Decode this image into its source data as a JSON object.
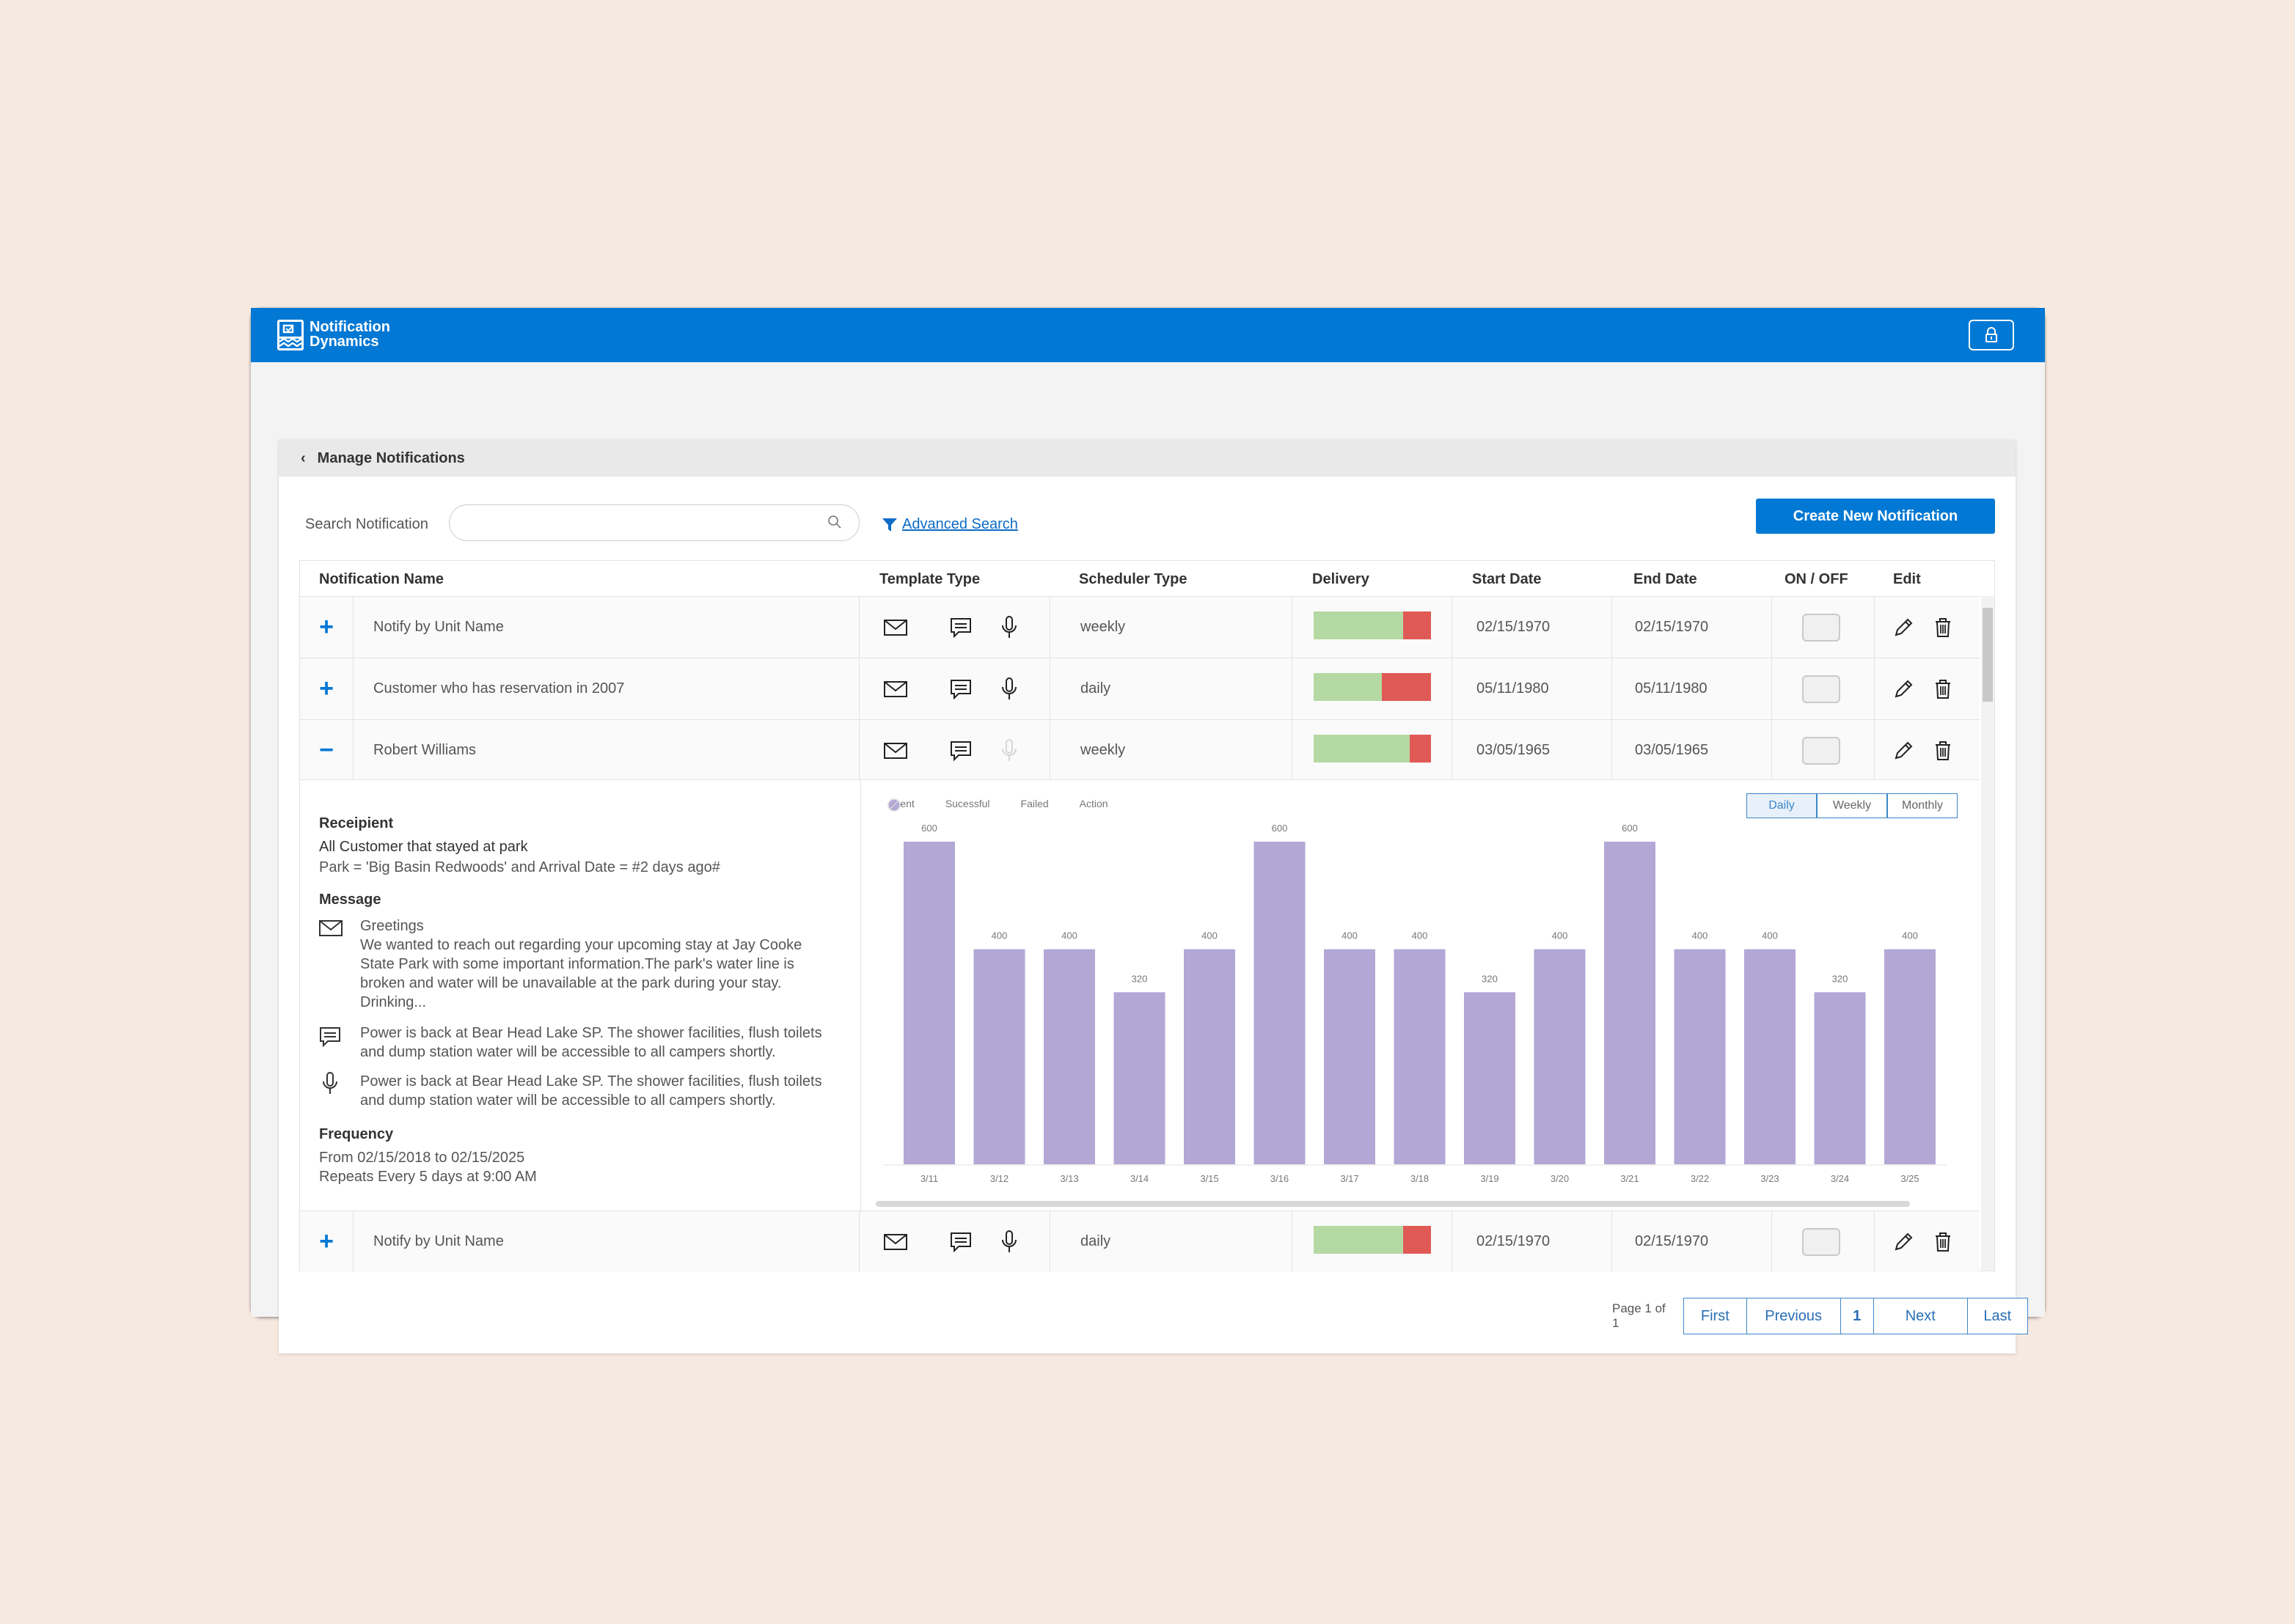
{
  "app": {
    "brand_line1": "Notification",
    "brand_line2": "Dynamics"
  },
  "breadcrumb": {
    "title": "Manage Notifications"
  },
  "toolbar": {
    "search_label": "Search Notification",
    "search_placeholder": "",
    "advanced_search": "Advanced Search",
    "create_button": "Create New Notification"
  },
  "table": {
    "headers": {
      "name": "Notification Name",
      "template": "Template Type",
      "scheduler": "Scheduler Type",
      "delivery": "Delivery",
      "start": "Start Date",
      "end": "End Date",
      "onoff": "ON / OFF",
      "edit": "Edit"
    },
    "rows": [
      {
        "expander": "+",
        "name": "Notify by Unit Name",
        "scheduler": "weekly",
        "delivery_success_fraction": 0.76,
        "start": "02/15/1970",
        "end": "02/15/1970",
        "voice_enabled": true
      },
      {
        "expander": "+",
        "name": "Customer who has reservation in 2007",
        "scheduler": "daily",
        "delivery_success_fraction": 0.58,
        "start": "05/11/1980",
        "end": "05/11/1980",
        "voice_enabled": true
      },
      {
        "expander": "−",
        "name": "Robert Williams",
        "scheduler": "weekly",
        "delivery_success_fraction": 0.82,
        "start": "03/05/1965",
        "end": "03/05/1965",
        "voice_enabled": false
      },
      {
        "expander": "+",
        "name": "Notify by Unit Name",
        "scheduler": "daily",
        "delivery_success_fraction": 0.76,
        "start": "02/15/1970",
        "end": "02/15/1970",
        "voice_enabled": true
      }
    ]
  },
  "detail": {
    "recipient_heading": "Receipient",
    "recipient_line1": "All Customer that stayed at park",
    "recipient_line2": "Park = 'Big Basin Redwoods' and Arrival Date = #2 days ago#",
    "message_heading": "Message",
    "email_greeting": "Greetings",
    "email_body": "We wanted to reach out regarding your upcoming stay at Jay Cooke State Park with some important information.The park's water line is broken and water will be unavailable at the park during your stay. Drinking...",
    "sms_body": "Power is back at Bear Head Lake SP. The shower facilities, flush toilets and dump station water will be accessible to all campers shortly.",
    "voice_body": "Power is back at Bear Head Lake SP. The shower facilities, flush toilets and dump station water will be accessible to all campers shortly.",
    "frequency_heading": "Frequency",
    "frequency_line1": "From 02/15/2018 to 02/15/2025",
    "frequency_line2": "Repeats Every 5 days at 9:00 AM",
    "legend": [
      "Sent",
      "Sucessful",
      "Failed",
      "Action"
    ],
    "periods": [
      "Daily",
      "Weekly",
      "Monthly"
    ]
  },
  "chart_data": {
    "type": "bar",
    "categories": [
      "3/11",
      "3/12",
      "3/13",
      "3/14",
      "3/15",
      "3/16",
      "3/17",
      "3/18",
      "3/19",
      "3/20",
      "3/21",
      "3/22",
      "3/23",
      "3/24",
      "3/25"
    ],
    "series": [
      {
        "name": "Sent",
        "values": [
          600,
          400,
          400,
          320,
          400,
          600,
          400,
          400,
          320,
          400,
          600,
          400,
          400,
          320,
          400
        ]
      }
    ],
    "ylim": [
      0,
      600
    ],
    "legend_position": "top-left",
    "grid": false,
    "colors": {
      "bar": "#b3a7d6"
    }
  },
  "pagination": {
    "info": "Page 1 of 1",
    "first": "First",
    "previous": "Previous",
    "current": "1",
    "next": "Next",
    "last": "Last"
  },
  "colors": {
    "primary": "#0178d4",
    "success": "#b5d9a3",
    "failure": "#e05a55"
  }
}
